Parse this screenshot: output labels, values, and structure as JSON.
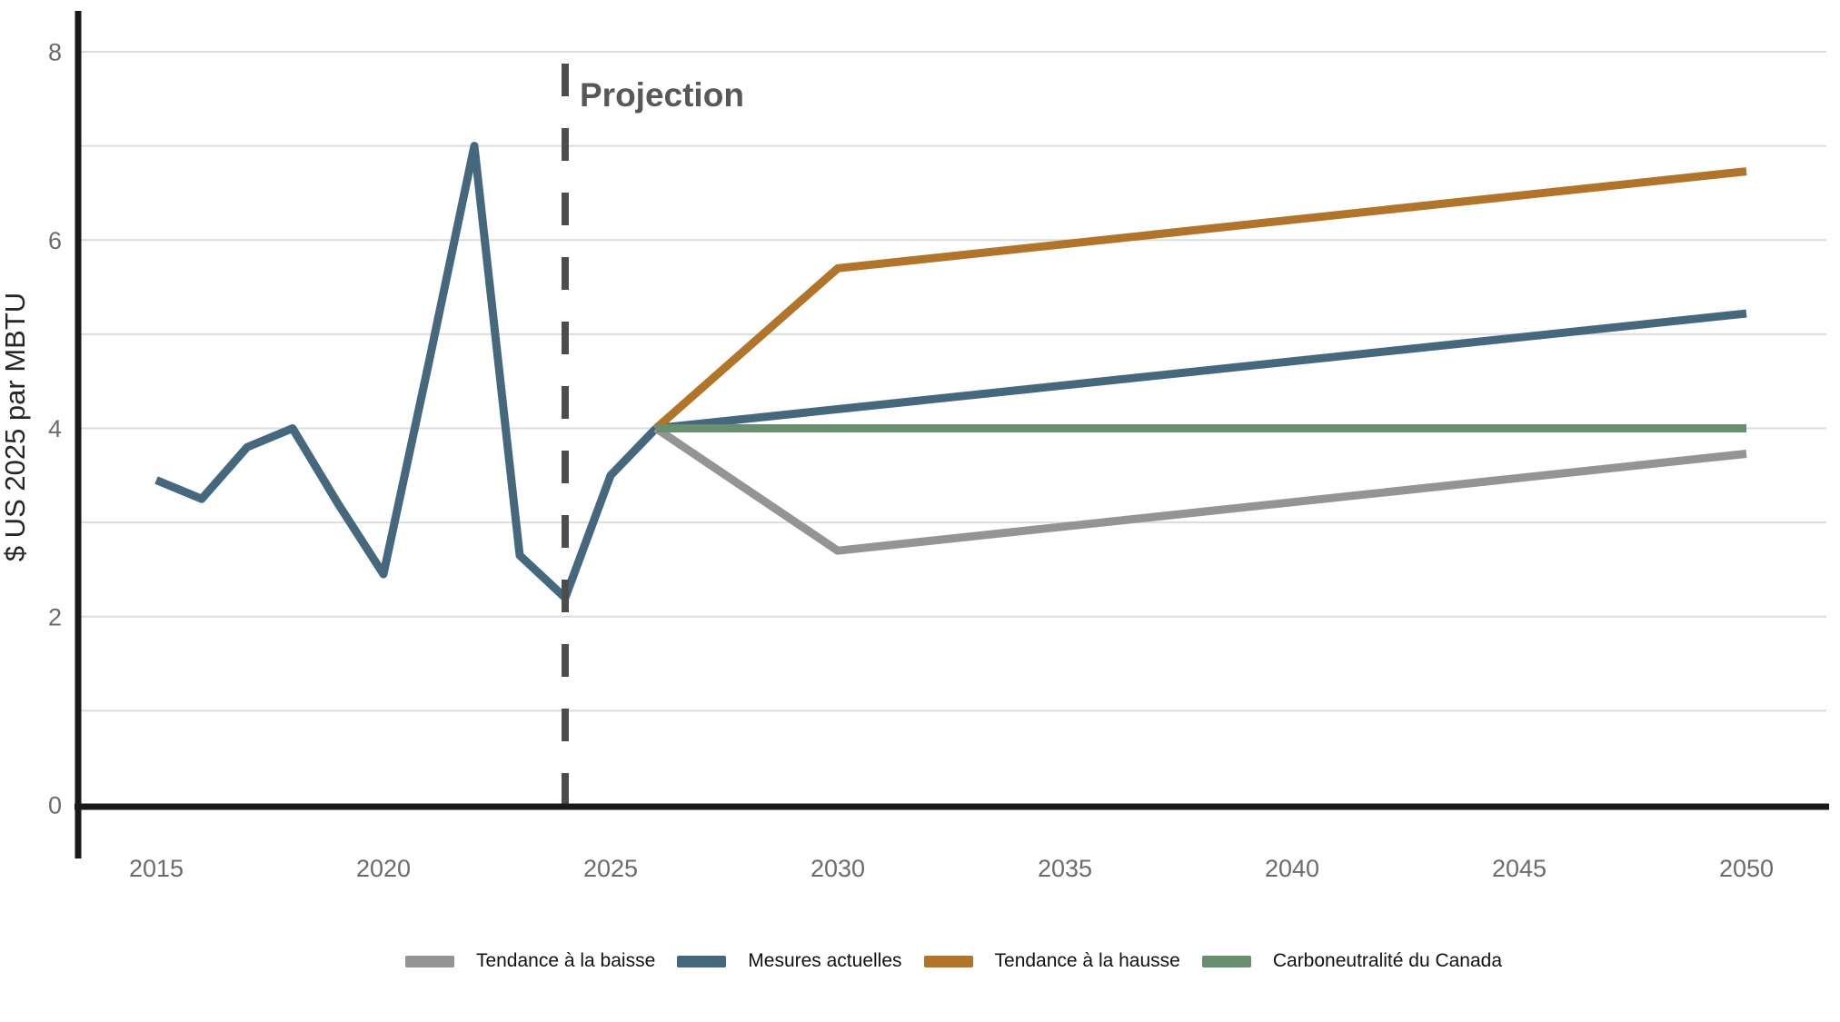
{
  "chart_data": {
    "type": "line",
    "ylabel": "$ US 2025 par MBTU",
    "projection": {
      "label": "Projection",
      "x": 2024
    },
    "xticks": [
      "2015",
      "2020",
      "2025",
      "2030",
      "2035",
      "2040",
      "2045",
      "2050"
    ],
    "yticks": [
      "0",
      "2",
      "4",
      "6",
      "8"
    ],
    "xlim": [
      2015,
      2050
    ],
    "ylim": [
      0,
      8
    ],
    "grid": "horizontal lines at every 1 unit",
    "legend_position": "bottom-center",
    "historical_series": {
      "color": "#46687F",
      "x": [
        2015,
        2016,
        2017,
        2018,
        2019,
        2020,
        2021,
        2022,
        2023,
        2024,
        2025,
        2026
      ],
      "y": [
        3.45,
        3.25,
        3.8,
        4.0,
        3.2,
        2.45,
        4.7,
        7.0,
        2.65,
        2.2,
        3.5,
        4.0
      ]
    },
    "series": [
      {
        "name": "Tendance à la baisse",
        "color": "#949494",
        "x": [
          2026,
          2030,
          2050
        ],
        "y": [
          4.0,
          2.7,
          3.73
        ]
      },
      {
        "name": "Mesures actuelles",
        "color": "#46687F",
        "x": [
          2026,
          2050
        ],
        "y": [
          4.0,
          5.22
        ]
      },
      {
        "name": "Tendance à la hausse",
        "color": "#B0752A",
        "x": [
          2026,
          2030,
          2050
        ],
        "y": [
          4.0,
          5.7,
          6.73
        ]
      },
      {
        "name": "Carboneutralité du Canada",
        "color": "#6A8F70",
        "x": [
          2026,
          2050
        ],
        "y": [
          4.0,
          4.0
        ]
      }
    ],
    "colors": {
      "axis": "#1a1a1a",
      "grid": "#dcdcdc",
      "divider": "#4d4d4d",
      "tick_label": "#6b6b6b",
      "projection_label": "#58585a",
      "ylabel": "#262626",
      "legend_text": "#111111",
      "background": "#ffffff"
    }
  }
}
